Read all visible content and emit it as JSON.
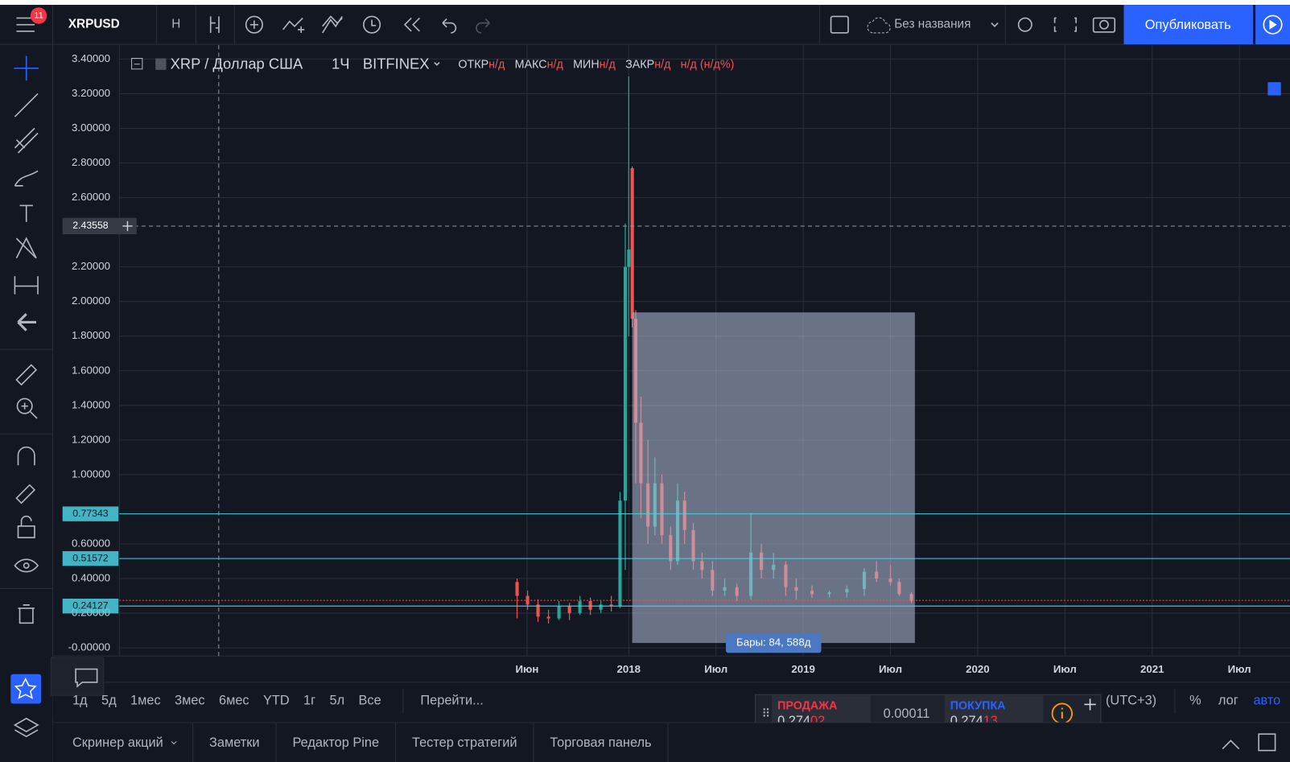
{
  "topbar": {
    "badge": "11",
    "symbol": "XRPUSD",
    "interval": "Н",
    "layout_name": "Без названия",
    "publish": "Опубликовать"
  },
  "legend": {
    "pair": "XRP / Доллар США",
    "interval": "1Ч",
    "exchange": "BITFINEX",
    "fields": [
      {
        "name": "ОТКР",
        "value": "н/д"
      },
      {
        "name": "МАКС",
        "value": "н/д"
      },
      {
        "name": "МИН",
        "value": "н/д"
      },
      {
        "name": "ЗАКР",
        "value": "н/д"
      }
    ],
    "change": "н/д (н/д%)"
  },
  "chart_data": {
    "type": "candlestick",
    "up_color": "#26a69a",
    "down_color": "#ef5350",
    "grid": true,
    "xlim": [
      2015.08,
      2021.79
    ],
    "ylim": [
      -0.047,
      3.48
    ],
    "xticks": [
      {
        "value": 2017.417,
        "label": "Июн"
      },
      2018,
      {
        "value": 2018.5,
        "label": "Июл"
      },
      2019,
      {
        "value": 2019.5,
        "label": "Июл"
      },
      2020,
      {
        "value": 2020.5,
        "label": "Июл"
      },
      2021,
      {
        "value": 2021.5,
        "label": "Июл"
      }
    ],
    "yticks": [
      {
        "value": 3.4,
        "label": "3.40000"
      },
      {
        "value": 3.2,
        "label": "3.20000"
      },
      {
        "value": 3.0,
        "label": "3.00000"
      },
      {
        "value": 2.8,
        "label": "2.80000"
      },
      {
        "value": 2.6,
        "label": "2.60000"
      },
      {
        "value": 2.2,
        "label": "2.20000"
      },
      {
        "value": 2.0,
        "label": "2.00000"
      },
      {
        "value": 1.8,
        "label": "1.80000"
      },
      {
        "value": 1.6,
        "label": "1.60000"
      },
      {
        "value": 1.4,
        "label": "1.40000"
      },
      {
        "value": 1.2,
        "label": "1.20000"
      },
      {
        "value": 1.0,
        "label": "1.00000"
      },
      {
        "value": 0.6,
        "label": "0.60000"
      },
      {
        "value": 0.4,
        "label": "0.40000"
      },
      {
        "value": 0.2,
        "label": "0.20000"
      },
      {
        "value": 0,
        "label": "-0.00000"
      }
    ],
    "x": [
      2017.36,
      2017.42,
      2017.48,
      2017.54,
      2017.6,
      2017.66,
      2017.72,
      2017.78,
      2017.84,
      2017.9,
      2017.95,
      2017.98,
      2018.0,
      2018.02,
      2018.04,
      2018.07,
      2018.11,
      2018.15,
      2018.19,
      2018.24,
      2018.28,
      2018.32,
      2018.37,
      2018.42,
      2018.48,
      2018.55,
      2018.62,
      2018.7,
      2018.76,
      2018.83,
      2018.9,
      2018.96,
      2019.05,
      2019.15,
      2019.25,
      2019.35,
      2019.42,
      2019.5,
      2019.55,
      2019.62
    ],
    "open": [
      0.38,
      0.3,
      0.25,
      0.18,
      0.17,
      0.24,
      0.2,
      0.27,
      0.22,
      0.25,
      0.24,
      0.85,
      2.2,
      2.77,
      1.9,
      1.3,
      0.95,
      0.7,
      0.95,
      0.65,
      0.5,
      0.85,
      0.68,
      0.5,
      0.45,
      0.33,
      0.35,
      0.3,
      0.55,
      0.45,
      0.48,
      0.35,
      0.33,
      0.31,
      0.32,
      0.34,
      0.44,
      0.4,
      0.38,
      0.31
    ],
    "high": [
      0.4,
      0.33,
      0.28,
      0.22,
      0.27,
      0.26,
      0.3,
      0.29,
      0.27,
      0.3,
      0.9,
      2.45,
      3.3,
      2.78,
      1.95,
      1.45,
      1.2,
      1.1,
      1.0,
      0.7,
      0.95,
      0.9,
      0.72,
      0.55,
      0.5,
      0.4,
      0.37,
      0.78,
      0.6,
      0.55,
      0.5,
      0.4,
      0.36,
      0.33,
      0.36,
      0.46,
      0.5,
      0.48,
      0.4,
      0.32
    ],
    "low": [
      0.17,
      0.22,
      0.15,
      0.14,
      0.16,
      0.16,
      0.19,
      0.19,
      0.2,
      0.21,
      0.23,
      0.45,
      1.8,
      1.85,
      0.95,
      0.75,
      0.6,
      0.65,
      0.6,
      0.45,
      0.48,
      0.6,
      0.45,
      0.4,
      0.3,
      0.3,
      0.27,
      0.28,
      0.4,
      0.4,
      0.3,
      0.28,
      0.29,
      0.29,
      0.29,
      0.3,
      0.38,
      0.36,
      0.3,
      0.26
    ],
    "close": [
      0.3,
      0.25,
      0.18,
      0.17,
      0.24,
      0.2,
      0.27,
      0.22,
      0.25,
      0.24,
      0.85,
      2.2,
      2.3,
      1.9,
      1.3,
      0.95,
      0.7,
      0.95,
      0.65,
      0.5,
      0.85,
      0.68,
      0.5,
      0.45,
      0.33,
      0.35,
      0.3,
      0.55,
      0.45,
      0.48,
      0.35,
      0.33,
      0.31,
      0.32,
      0.34,
      0.44,
      0.4,
      0.38,
      0.31,
      0.27
    ],
    "hlines": [
      {
        "value": 0.77343,
        "color": "#4dd0e1"
      },
      {
        "value": 0.51572,
        "color": "#4dd0e1"
      },
      {
        "value": 0.24127,
        "color": "#4dd0e1"
      }
    ],
    "last_price_line": {
      "value": 0.274,
      "color": "#ef5350"
    },
    "crosshair": {
      "x": 2015.65,
      "y": 2.43558
    },
    "range": {
      "x0": 2018.02,
      "x1": 2019.64,
      "y0": 0.028,
      "y1": 1.937,
      "label": "Бары: 84, 588д"
    }
  },
  "ranges": [
    "1д",
    "5д",
    "1мес",
    "3мес",
    "6мес",
    "YTD",
    "1г",
    "5л",
    "Все"
  ],
  "goto": "Перейти...",
  "timezone": "(UTC+3)",
  "scale_options": [
    "%",
    "лог",
    "авто"
  ],
  "trade": {
    "sell_label": "ПРОДАЖА",
    "sell_main": "0.274",
    "sell_tail": "02",
    "spread": "0.00011",
    "buy_label": "ПОКУПКА",
    "buy_main": "0.274",
    "buy_tail": "13"
  },
  "tabs": [
    "Скринер акций",
    "Заметки",
    "Редактор Pine",
    "Тестер стратегий",
    "Торговая панель"
  ]
}
